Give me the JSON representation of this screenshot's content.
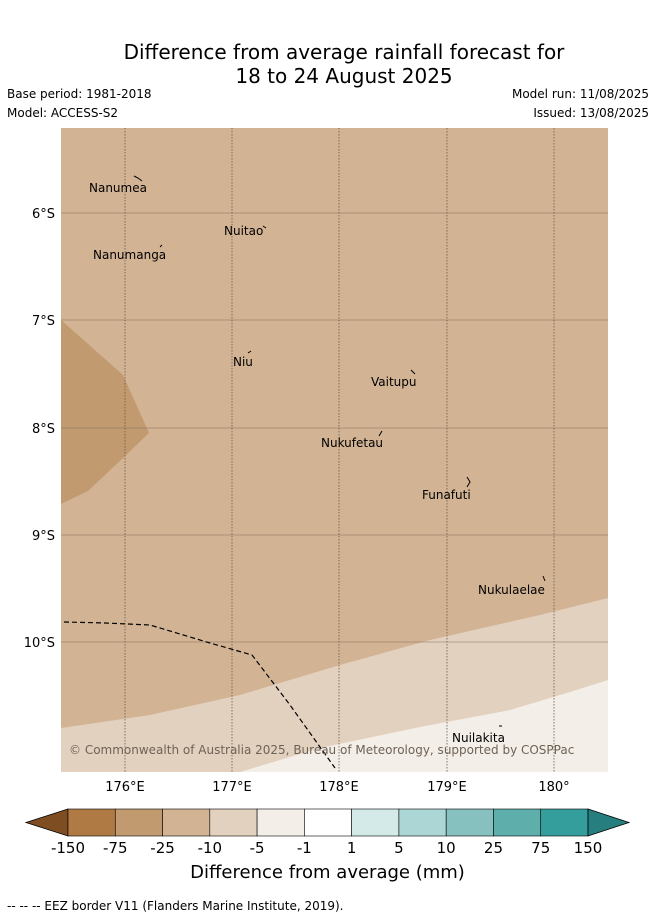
{
  "header": {
    "title_line1": "Difference from average rainfall forecast for",
    "title_line2": "18 to 24 August 2025",
    "base_period": "Base period: 1981-2018",
    "model": "Model: ACCESS-S2",
    "model_run": "Model run: 11/08/2025",
    "issued": "Issued: 13/08/2025"
  },
  "map": {
    "lat_labels": [
      "6°S",
      "7°S",
      "8°S",
      "9°S",
      "10°S"
    ],
    "lon_labels": [
      "176°E",
      "177°E",
      "178°E",
      "179°E",
      "180°"
    ],
    "islands": [
      {
        "name": "Nanumea"
      },
      {
        "name": "Nuitao"
      },
      {
        "name": "Nanumanga"
      },
      {
        "name": "Niu"
      },
      {
        "name": "Vaitupu"
      },
      {
        "name": "Nukufetau"
      },
      {
        "name": "Funafuti"
      },
      {
        "name": "Nukulaelae"
      },
      {
        "name": "Nuilakita"
      }
    ],
    "copyright": "© Commonwealth of Australia 2025, Bureau of Meteorology, supported by COSPPac",
    "category_colors": {
      "minus25_minus10": "#d2b394",
      "minus75_minus25": "#c19a6f",
      "minus10_minus5": "#e3d1c0",
      "minus5_minus1": "#f3eee8"
    }
  },
  "colorbar": {
    "ticks": [
      "-150",
      "-75",
      "-25",
      "-10",
      "-5",
      "-1",
      "1",
      "5",
      "10",
      "25",
      "75",
      "150"
    ],
    "colors": [
      "#7e4e22",
      "#b07a45",
      "#c19a6f",
      "#d2b394",
      "#e3d1c0",
      "#f3eee8",
      "#ffffff",
      "#d4eae9",
      "#acd6d5",
      "#86c1c0",
      "#5eaeac",
      "#349e9c",
      "#267f7e"
    ],
    "title": "Difference from average (mm)"
  },
  "footer": {
    "legend": "--  --  -- EEZ border V11 (Flanders Marine Institute, 2019)."
  }
}
